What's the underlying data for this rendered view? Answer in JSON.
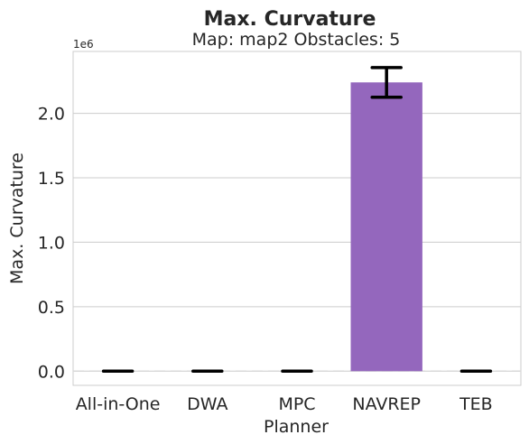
{
  "chart_data": {
    "type": "bar",
    "title": "Max. Curvature",
    "subtitle": "Map: map2 Obstacles: 5",
    "xlabel": "Planner",
    "ylabel": "Max. Curvature",
    "y_exponent_label": "1e6",
    "y_scale": 1000000,
    "ylim": [
      -0.11,
      2.48
    ],
    "yticks": [
      0.0,
      0.5,
      1.0,
      1.5,
      2.0
    ],
    "ytick_labels": [
      "0.0",
      "0.5",
      "1.0",
      "1.5",
      "2.0"
    ],
    "grid": "y",
    "categories": [
      "All-in-One",
      "DWA",
      "MPC",
      "NAVREP",
      "TEB"
    ],
    "values": [
      0,
      0,
      0,
      2.24,
      0
    ],
    "error": [
      0,
      0,
      0,
      0.115,
      0
    ],
    "bar_color": "#9467bd",
    "error_color": "#000000"
  }
}
